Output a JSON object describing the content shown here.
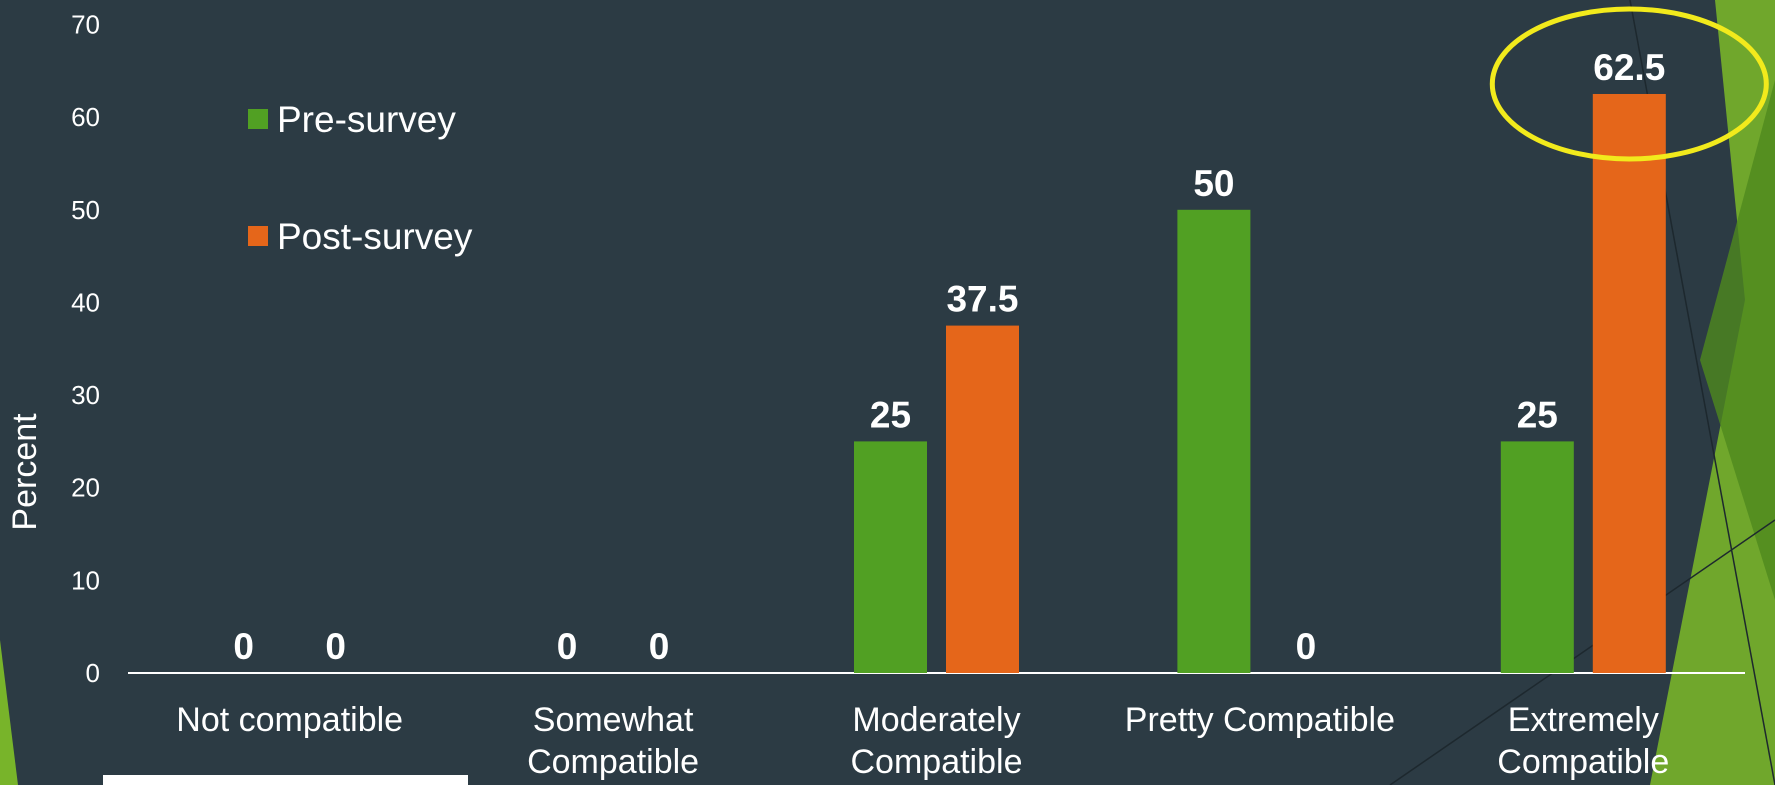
{
  "colors": {
    "background": "#2c3b44",
    "pre": "#51a023",
    "post": "#e5661a",
    "highlight": "#f2ea1c",
    "decor_green": "#78b42a",
    "decor_dark_green": "#4f8a1e"
  },
  "chart_data": {
    "type": "bar",
    "categories": [
      [
        "Not compatible"
      ],
      [
        "Somewhat",
        "Compatible"
      ],
      [
        "Moderately",
        "Compatible"
      ],
      [
        "Pretty Compatible"
      ],
      [
        "Extremely",
        "Compatible"
      ]
    ],
    "series": [
      {
        "name": "Pre-survey",
        "values": [
          0,
          0,
          25,
          50,
          25
        ],
        "labels": [
          "0",
          "0",
          "25",
          "50",
          "25"
        ]
      },
      {
        "name": "Post-survey",
        "values": [
          0,
          0,
          37.5,
          0,
          62.5
        ],
        "labels": [
          "0",
          "0",
          "37.5",
          "0",
          "62.5"
        ]
      }
    ],
    "ylabel": "Percent",
    "xlabel": "",
    "ylim": [
      0,
      70
    ],
    "yticks": [
      0,
      10,
      20,
      30,
      40,
      50,
      60,
      70
    ],
    "grid": false,
    "legend": "top-left",
    "highlight": {
      "category": [
        "Extremely",
        "Compatible"
      ],
      "series": "Post-survey",
      "shape": "ellipse"
    }
  }
}
